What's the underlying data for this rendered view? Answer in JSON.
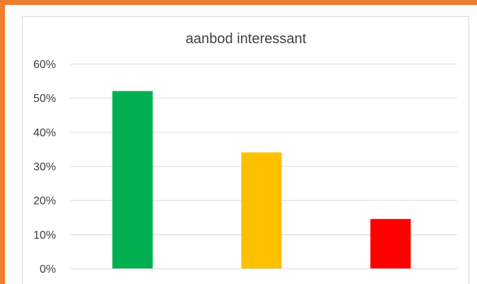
{
  "chart_data": {
    "type": "bar",
    "title": "aanbod interessant",
    "categories": [
      "",
      "",
      ""
    ],
    "values": [
      0.52,
      0.34,
      0.145
    ],
    "colors": [
      "#00B050",
      "#FFC000",
      "#FF0000"
    ],
    "ylim": [
      0,
      0.6
    ],
    "yticks": [
      0,
      0.1,
      0.2,
      0.3,
      0.4,
      0.5,
      0.6
    ],
    "ytick_labels": [
      "0%",
      "10%",
      "20%",
      "30%",
      "40%",
      "50%",
      "60%"
    ],
    "xlabel": "",
    "ylabel": "",
    "grid": true,
    "legend": "none"
  },
  "frame": {
    "accent_color": "#ED7D31"
  }
}
